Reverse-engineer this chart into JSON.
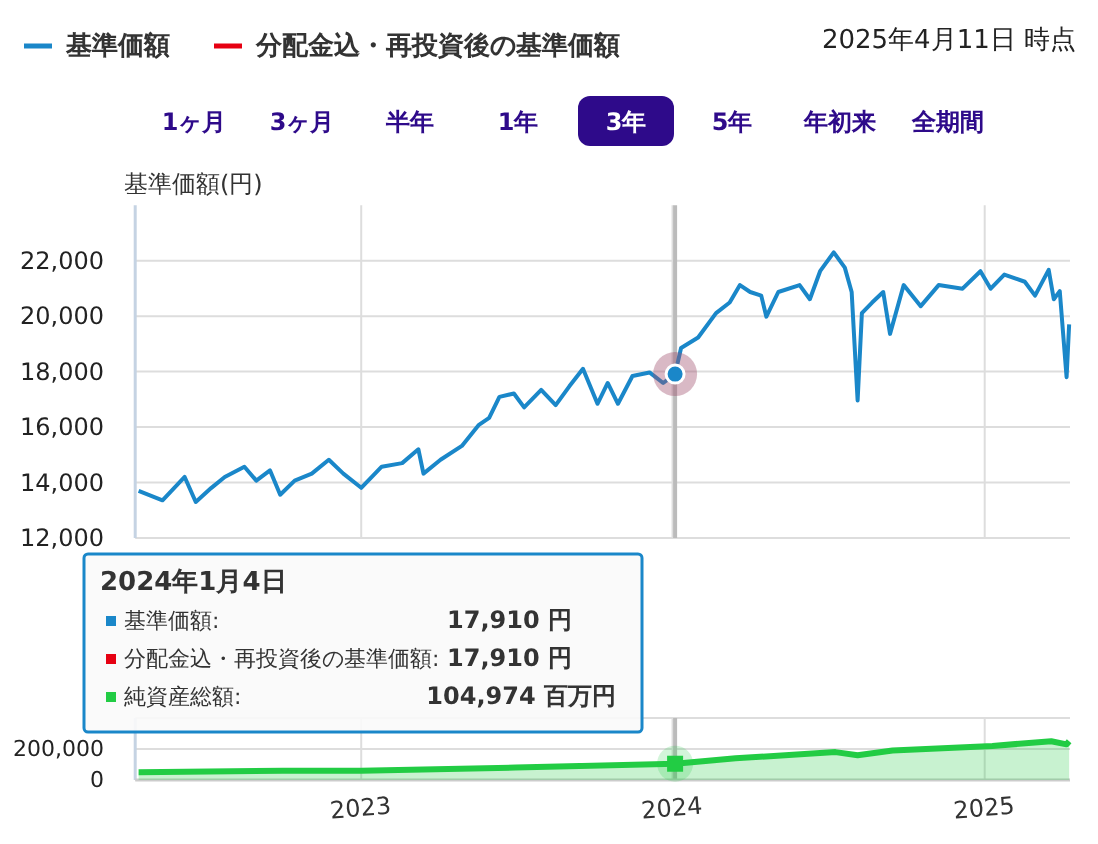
{
  "chart_data": [
    {
      "type": "line",
      "ylabel": "基準価額(円)",
      "xlim": [
        "2022-04-11",
        "2025-04-11"
      ],
      "xticks": [
        {
          "value": "2023-01-01",
          "label": null
        },
        {
          "value": "2024-01-01",
          "label": null
        },
        {
          "value": "2025-01-01",
          "label": null
        }
      ],
      "ylim": [
        12000,
        24000
      ],
      "yticks": [
        {
          "value": 12000,
          "label": "12,000"
        },
        {
          "value": 14000,
          "label": "14,000"
        },
        {
          "value": 16000,
          "label": "16,000"
        },
        {
          "value": 18000,
          "label": "18,000"
        },
        {
          "value": 20000,
          "label": "20,000"
        },
        {
          "value": 22000,
          "label": "22,000"
        }
      ],
      "tick_labels": "y",
      "grid": true,
      "legend": "top left",
      "line_style": "solid",
      "x": [
        "2022-04-15",
        "2022-05-13",
        "2022-06-08",
        "2022-06-21",
        "2022-07-09",
        "2022-07-25",
        "2022-08-17",
        "2022-08-31",
        "2022-09-16",
        "2022-09-28",
        "2022-10-15",
        "2022-11-04",
        "2022-11-24",
        "2022-12-11",
        "2023-01-01",
        "2023-01-25",
        "2023-02-18",
        "2023-03-09",
        "2023-03-15",
        "2023-04-04",
        "2023-04-29",
        "2023-05-19",
        "2023-05-31",
        "2023-06-12",
        "2023-06-29",
        "2023-07-11",
        "2023-07-31",
        "2023-08-17",
        "2023-09-02",
        "2023-09-18",
        "2023-10-05",
        "2023-10-17",
        "2023-10-29",
        "2023-11-15",
        "2023-12-05",
        "2023-12-21",
        "2024-01-04",
        "2024-01-11",
        "2024-01-31",
        "2024-02-21",
        "2024-03-08",
        "2024-03-20",
        "2024-04-01",
        "2024-04-14",
        "2024-04-20",
        "2024-05-04",
        "2024-05-29",
        "2024-06-10",
        "2024-06-22",
        "2024-07-08",
        "2024-07-21",
        "2024-07-29",
        "2024-08-05",
        "2024-08-10",
        "2024-08-22",
        "2024-09-04",
        "2024-09-12",
        "2024-09-28",
        "2024-10-18",
        "2024-11-08",
        "2024-12-06",
        "2024-12-27",
        "2025-01-08",
        "2025-01-24",
        "2025-02-17",
        "2025-03-01",
        "2025-03-17",
        "2025-03-23",
        "2025-03-30",
        "2025-04-07",
        "2025-04-10"
      ],
      "series": [
        {
          "name": "基準価額",
          "color": "#1a87c9",
          "values": [
            13700,
            13360,
            14200,
            13300,
            13800,
            14200,
            14570,
            14070,
            14440,
            13560,
            14070,
            14320,
            14820,
            14320,
            13810,
            14570,
            14700,
            15200,
            14320,
            14820,
            15320,
            16080,
            16330,
            17090,
            17210,
            16710,
            17340,
            16790,
            17470,
            18100,
            16840,
            17590,
            16840,
            17840,
            17970,
            17590,
            17910,
            18850,
            19230,
            20110,
            20490,
            21120,
            20870,
            20740,
            19980,
            20870,
            21120,
            20610,
            21620,
            22300,
            21750,
            20870,
            16960,
            20110,
            20490,
            20870,
            19360,
            21120,
            20360,
            21120,
            20990,
            21620,
            20990,
            21500,
            21240,
            20740,
            21670,
            20610,
            20900,
            17800,
            19700
          ]
        },
        {
          "name": "分配金込・再投資後の基準価額",
          "color": "#e60012",
          "values": [
            null,
            null,
            null,
            null,
            null,
            null,
            null,
            null,
            null,
            null,
            null,
            null,
            null,
            null,
            null,
            null,
            null,
            null,
            null,
            null,
            null,
            null,
            null,
            null,
            null,
            null,
            null,
            null,
            null,
            null,
            null,
            null,
            null,
            null,
            null,
            null,
            null,
            null,
            null,
            null,
            null,
            null,
            null,
            null,
            null,
            null,
            null,
            null,
            null,
            null,
            null,
            null,
            null,
            null,
            null,
            null,
            null,
            null,
            null,
            null,
            null,
            null,
            null,
            null,
            null,
            null,
            null,
            null,
            null,
            null,
            null
          ]
        }
      ],
      "ref_lines": [
        {
          "axis": "x",
          "value": "2024-01-04",
          "color": "#bbbbbb"
        }
      ],
      "annotations": [
        "2024年1月4日",
        "基準価額:",
        "17,910 円",
        "分配金込・再投資後の基準価額:",
        "17,910 円",
        "2025年4月11日 時点",
        "1ヶ月",
        "3ヶ月",
        "半年",
        "1年",
        "3年",
        "5年",
        "年初来",
        "全期間"
      ]
    },
    {
      "type": "area",
      "xlim": [
        "2022-04-11",
        "2025-04-11"
      ],
      "xticks": [
        {
          "value": "2023-01-01",
          "label": "2023"
        },
        {
          "value": "2024-01-01",
          "label": "2024"
        },
        {
          "value": "2025-01-01",
          "label": "2025"
        }
      ],
      "ylim": [
        0,
        400000
      ],
      "yticks": [
        {
          "value": 0,
          "label": "0"
        },
        {
          "value": 200000,
          "label": "200,000"
        },
        {
          "value": 400000,
          "label": null
        }
      ],
      "grid": true,
      "x": [
        "2022-04-15",
        "2022-10-01",
        "2023-01-01",
        "2023-07-01",
        "2024-01-04",
        "2024-03-15",
        "2024-07-10",
        "2024-08-05",
        "2024-09-15",
        "2025-01-10",
        "2025-03-20",
        "2025-04-07",
        "2025-04-10"
      ],
      "series": [
        {
          "color": "#22cc44",
          "values": [
            50000,
            60000,
            60000,
            80000,
            104974,
            140000,
            180000,
            160000,
            190000,
            220000,
            250000,
            230000,
            250000
          ]
        }
      ],
      "ref_lines": [
        {
          "axis": "x",
          "value": "2024-01-04",
          "color": "#bbbbbb"
        }
      ],
      "annotations": [
        "104,974 百万円",
        "純資産総額:"
      ]
    }
  ]
}
